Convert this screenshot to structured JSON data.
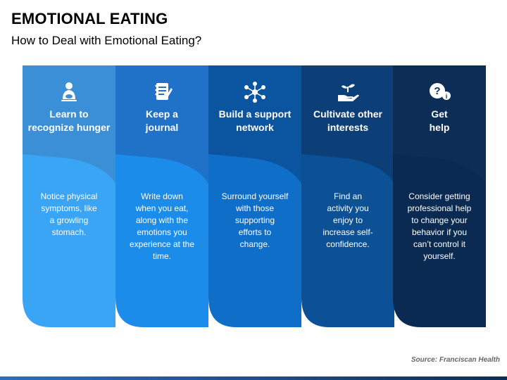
{
  "header": {
    "title": "EMOTIONAL EATING",
    "subtitle": "How to Deal with Emotional Eating?"
  },
  "cards": [
    {
      "icon": "person-hunger-icon",
      "title_line1": "Learn to",
      "title_line2": "recognize hunger",
      "body_lines": [
        "Notice physical",
        "symptoms, like",
        "a growling",
        "stomach."
      ],
      "top_color": "#3b8fd6",
      "bottom_color": "#3aa4f5"
    },
    {
      "icon": "journal-icon",
      "title_line1": "Keep a",
      "title_line2": "journal",
      "body_lines": [
        "Write down",
        "when you eat,",
        "along with the",
        "emotions you",
        "experience at the",
        "time."
      ],
      "top_color": "#1f72c7",
      "bottom_color": "#1b8cea"
    },
    {
      "icon": "network-icon",
      "title_line1": "Build a support",
      "title_line2": "network",
      "body_lines": [
        "Surround yourself",
        "with those",
        "supporting",
        "efforts to",
        "change."
      ],
      "top_color": "#0b55a0",
      "bottom_color": "#0f6fc8"
    },
    {
      "icon": "hand-plant-icon",
      "title_line1": "Cultivate other",
      "title_line2": "interests",
      "body_lines": [
        "Find an",
        "activity you",
        "enjoy to",
        "increase self-",
        "confidence."
      ],
      "top_color": "#0c3f78",
      "bottom_color": "#0c5196"
    },
    {
      "icon": "help-question-icon",
      "title_line1": "Get",
      "title_line2": "help",
      "body_lines": [
        "Consider getting",
        "professional help",
        "to change your",
        "behavior if you",
        "can’t control it",
        "yourself."
      ],
      "top_color": "#0b2d56",
      "bottom_color": "#0a2a52"
    }
  ],
  "footer": {
    "source": "Source: Franciscan Health"
  }
}
